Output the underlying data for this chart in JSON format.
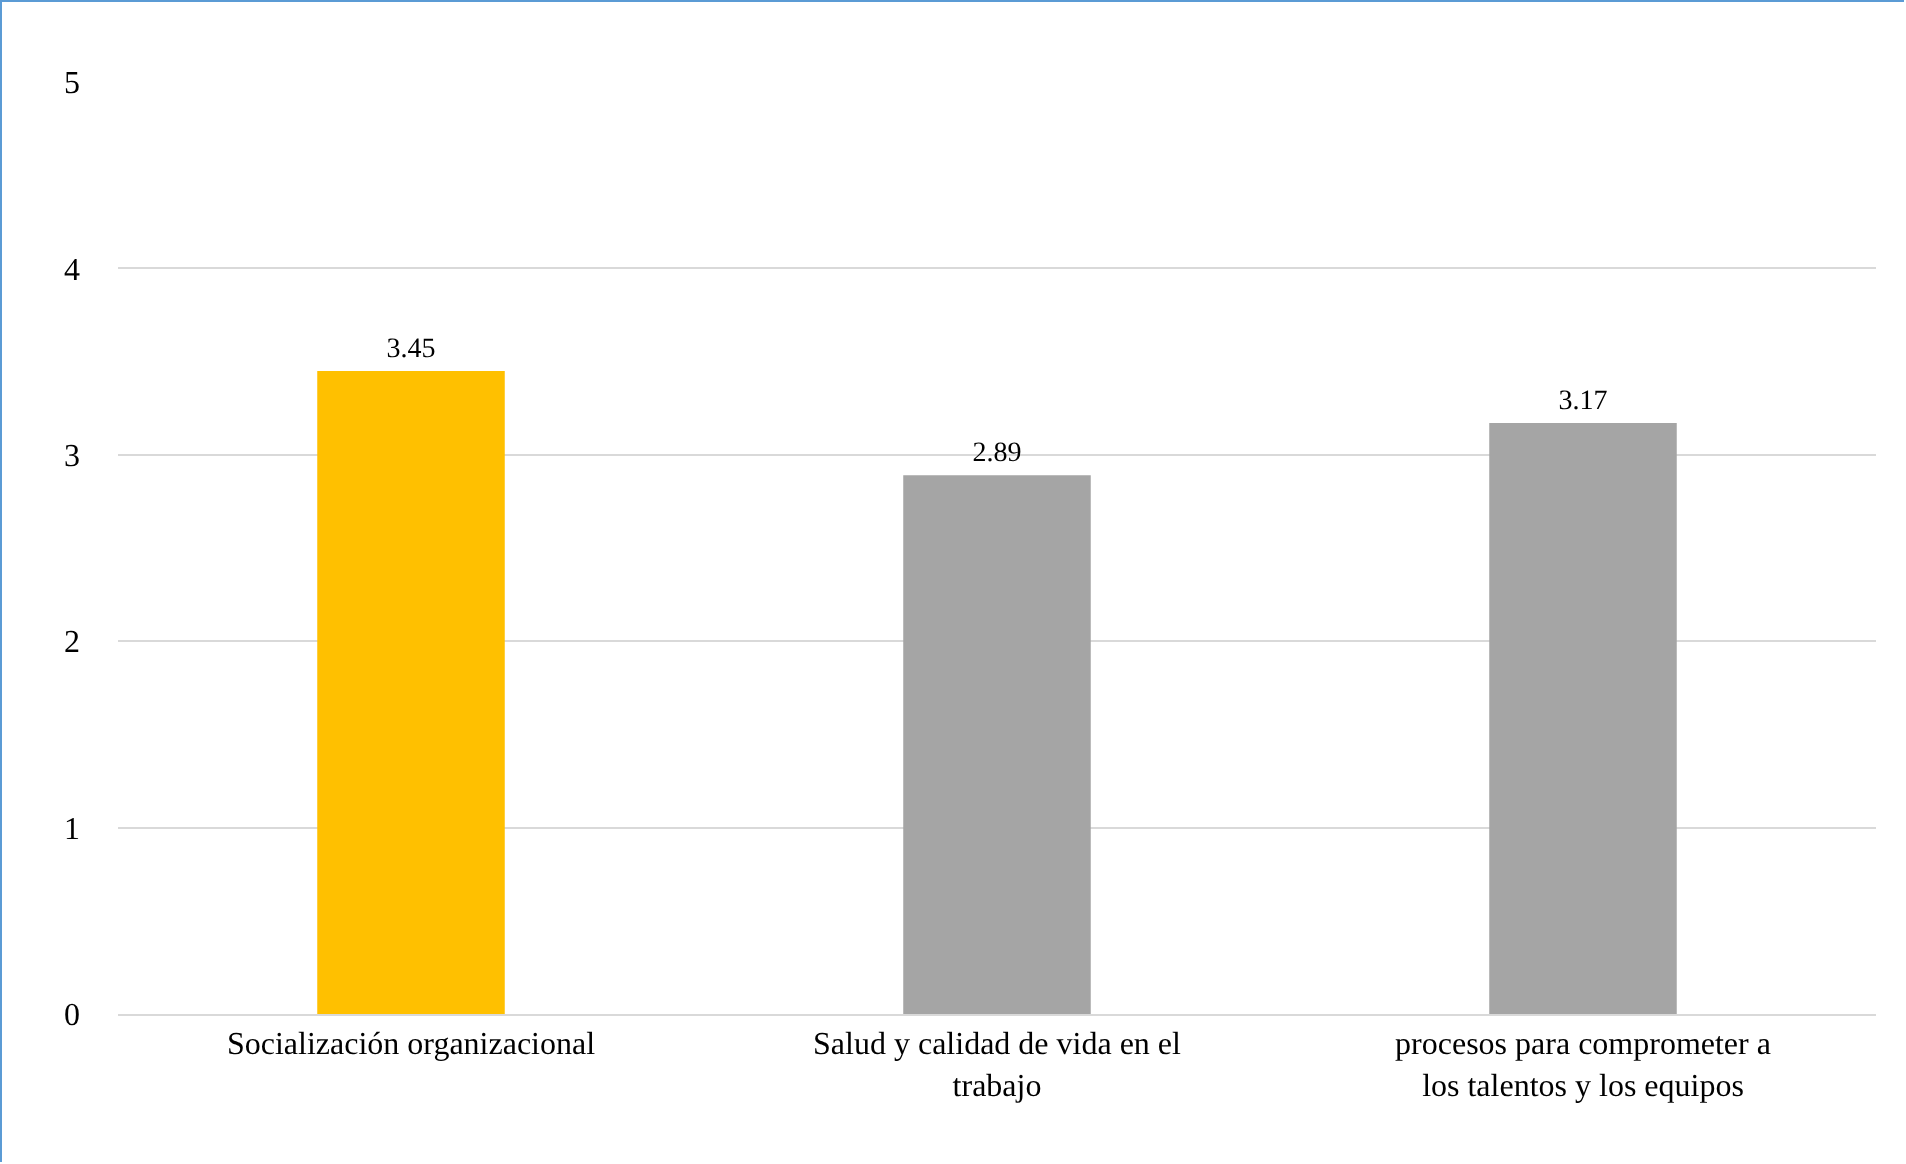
{
  "chart_data": {
    "type": "bar",
    "categories": [
      "Socialización organizacional",
      "Salud y calidad de vida en el trabajo",
      "procesos para comprometer a los talentos y los equipos"
    ],
    "values": [
      3.45,
      2.89,
      3.17
    ],
    "colors": [
      "#ffc000",
      "#a5a5a5",
      "#a5a5a5"
    ],
    "ylim": [
      0,
      5
    ],
    "yticks": [
      0,
      1,
      2,
      3,
      4,
      5
    ],
    "grid": "y",
    "data_labels": true
  }
}
